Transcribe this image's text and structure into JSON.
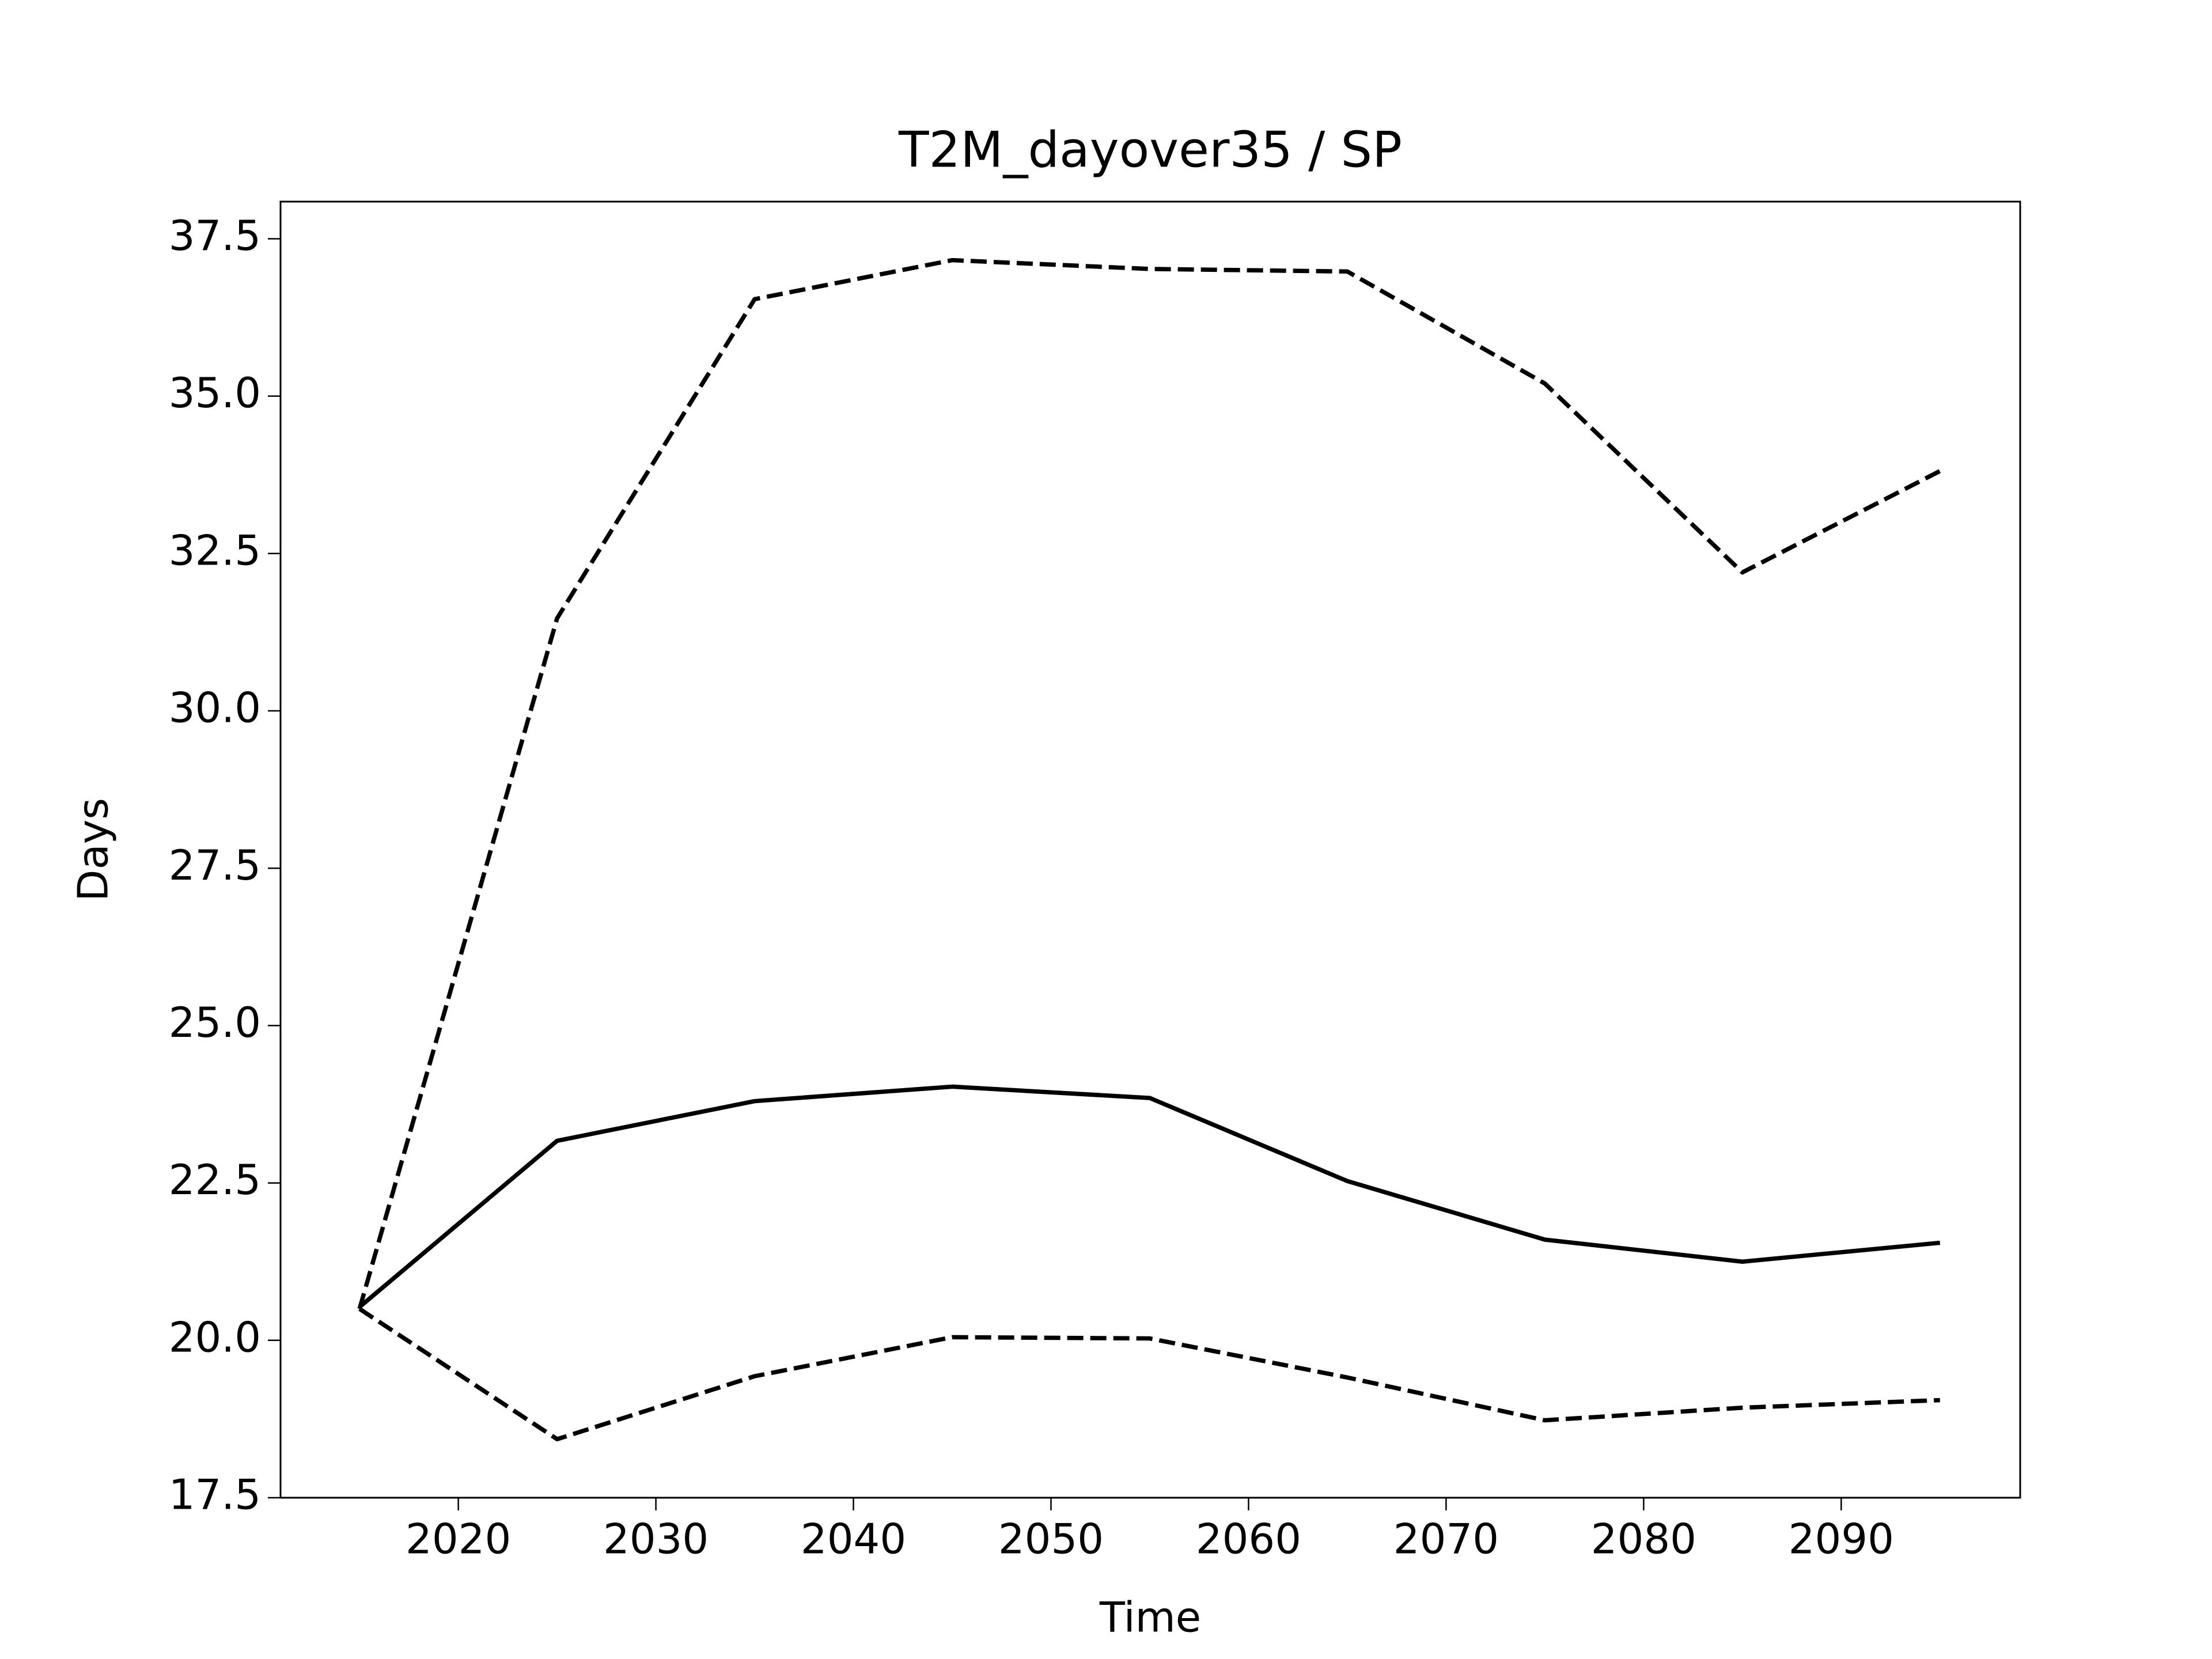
{
  "chart_data": {
    "type": "line",
    "title": "T2M_dayover35 / SP",
    "xlabel": "Time",
    "ylabel": "Days",
    "x": [
      2015,
      2025,
      2035,
      2045,
      2055,
      2065,
      2075,
      2085,
      2095
    ],
    "series": [
      {
        "color": "#000000",
        "linestyle": "solid",
        "values": [
          20.53,
          23.17,
          23.8,
          24.03,
          23.85,
          22.53,
          21.6,
          21.25,
          21.55
        ]
      },
      {
        "color": "#000000",
        "linestyle": "dashed",
        "values": [
          20.5,
          31.47,
          36.54,
          37.16,
          37.02,
          36.98,
          35.2,
          32.2,
          33.81
        ]
      },
      {
        "color": "#000000",
        "linestyle": "dashed",
        "values": [
          20.5,
          18.43,
          19.43,
          20.05,
          20.03,
          19.41,
          18.73,
          18.93,
          19.05
        ]
      }
    ],
    "xlim": [
      2011,
      2099.06
    ],
    "ylim": [
      17.5,
      38.09
    ],
    "xticks": [
      2020,
      2030,
      2040,
      2050,
      2060,
      2070,
      2080,
      2090
    ],
    "yticks": [
      17.5,
      {
        "value": 20,
        "label": "20.0"
      },
      22.5,
      {
        "value": 25,
        "label": "25.0"
      },
      27.5,
      {
        "value": 30,
        "label": "30.0"
      },
      32.5,
      {
        "value": 35,
        "label": "35.0"
      },
      37.5
    ],
    "grid": false
  }
}
